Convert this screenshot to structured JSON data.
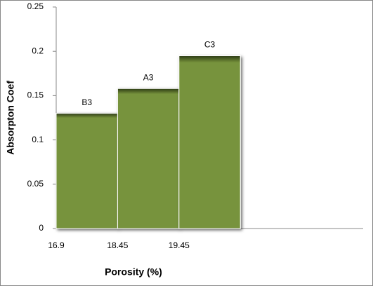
{
  "chart_data": {
    "type": "bar",
    "x_label": "Porosity (%)",
    "y_label": "Absorpton Coef",
    "categories": [
      "16.9",
      "18.45",
      "19.45",
      null,
      null
    ],
    "values": [
      0.13,
      0.158,
      0.195,
      null,
      null
    ],
    "bar_labels": [
      "B3",
      "A3",
      "C3",
      null,
      null
    ],
    "color": "#77933c",
    "ylim": [
      0,
      0.25
    ],
    "yticks": [
      0,
      0.05,
      0.1,
      0.15,
      0.2,
      0.25
    ]
  }
}
